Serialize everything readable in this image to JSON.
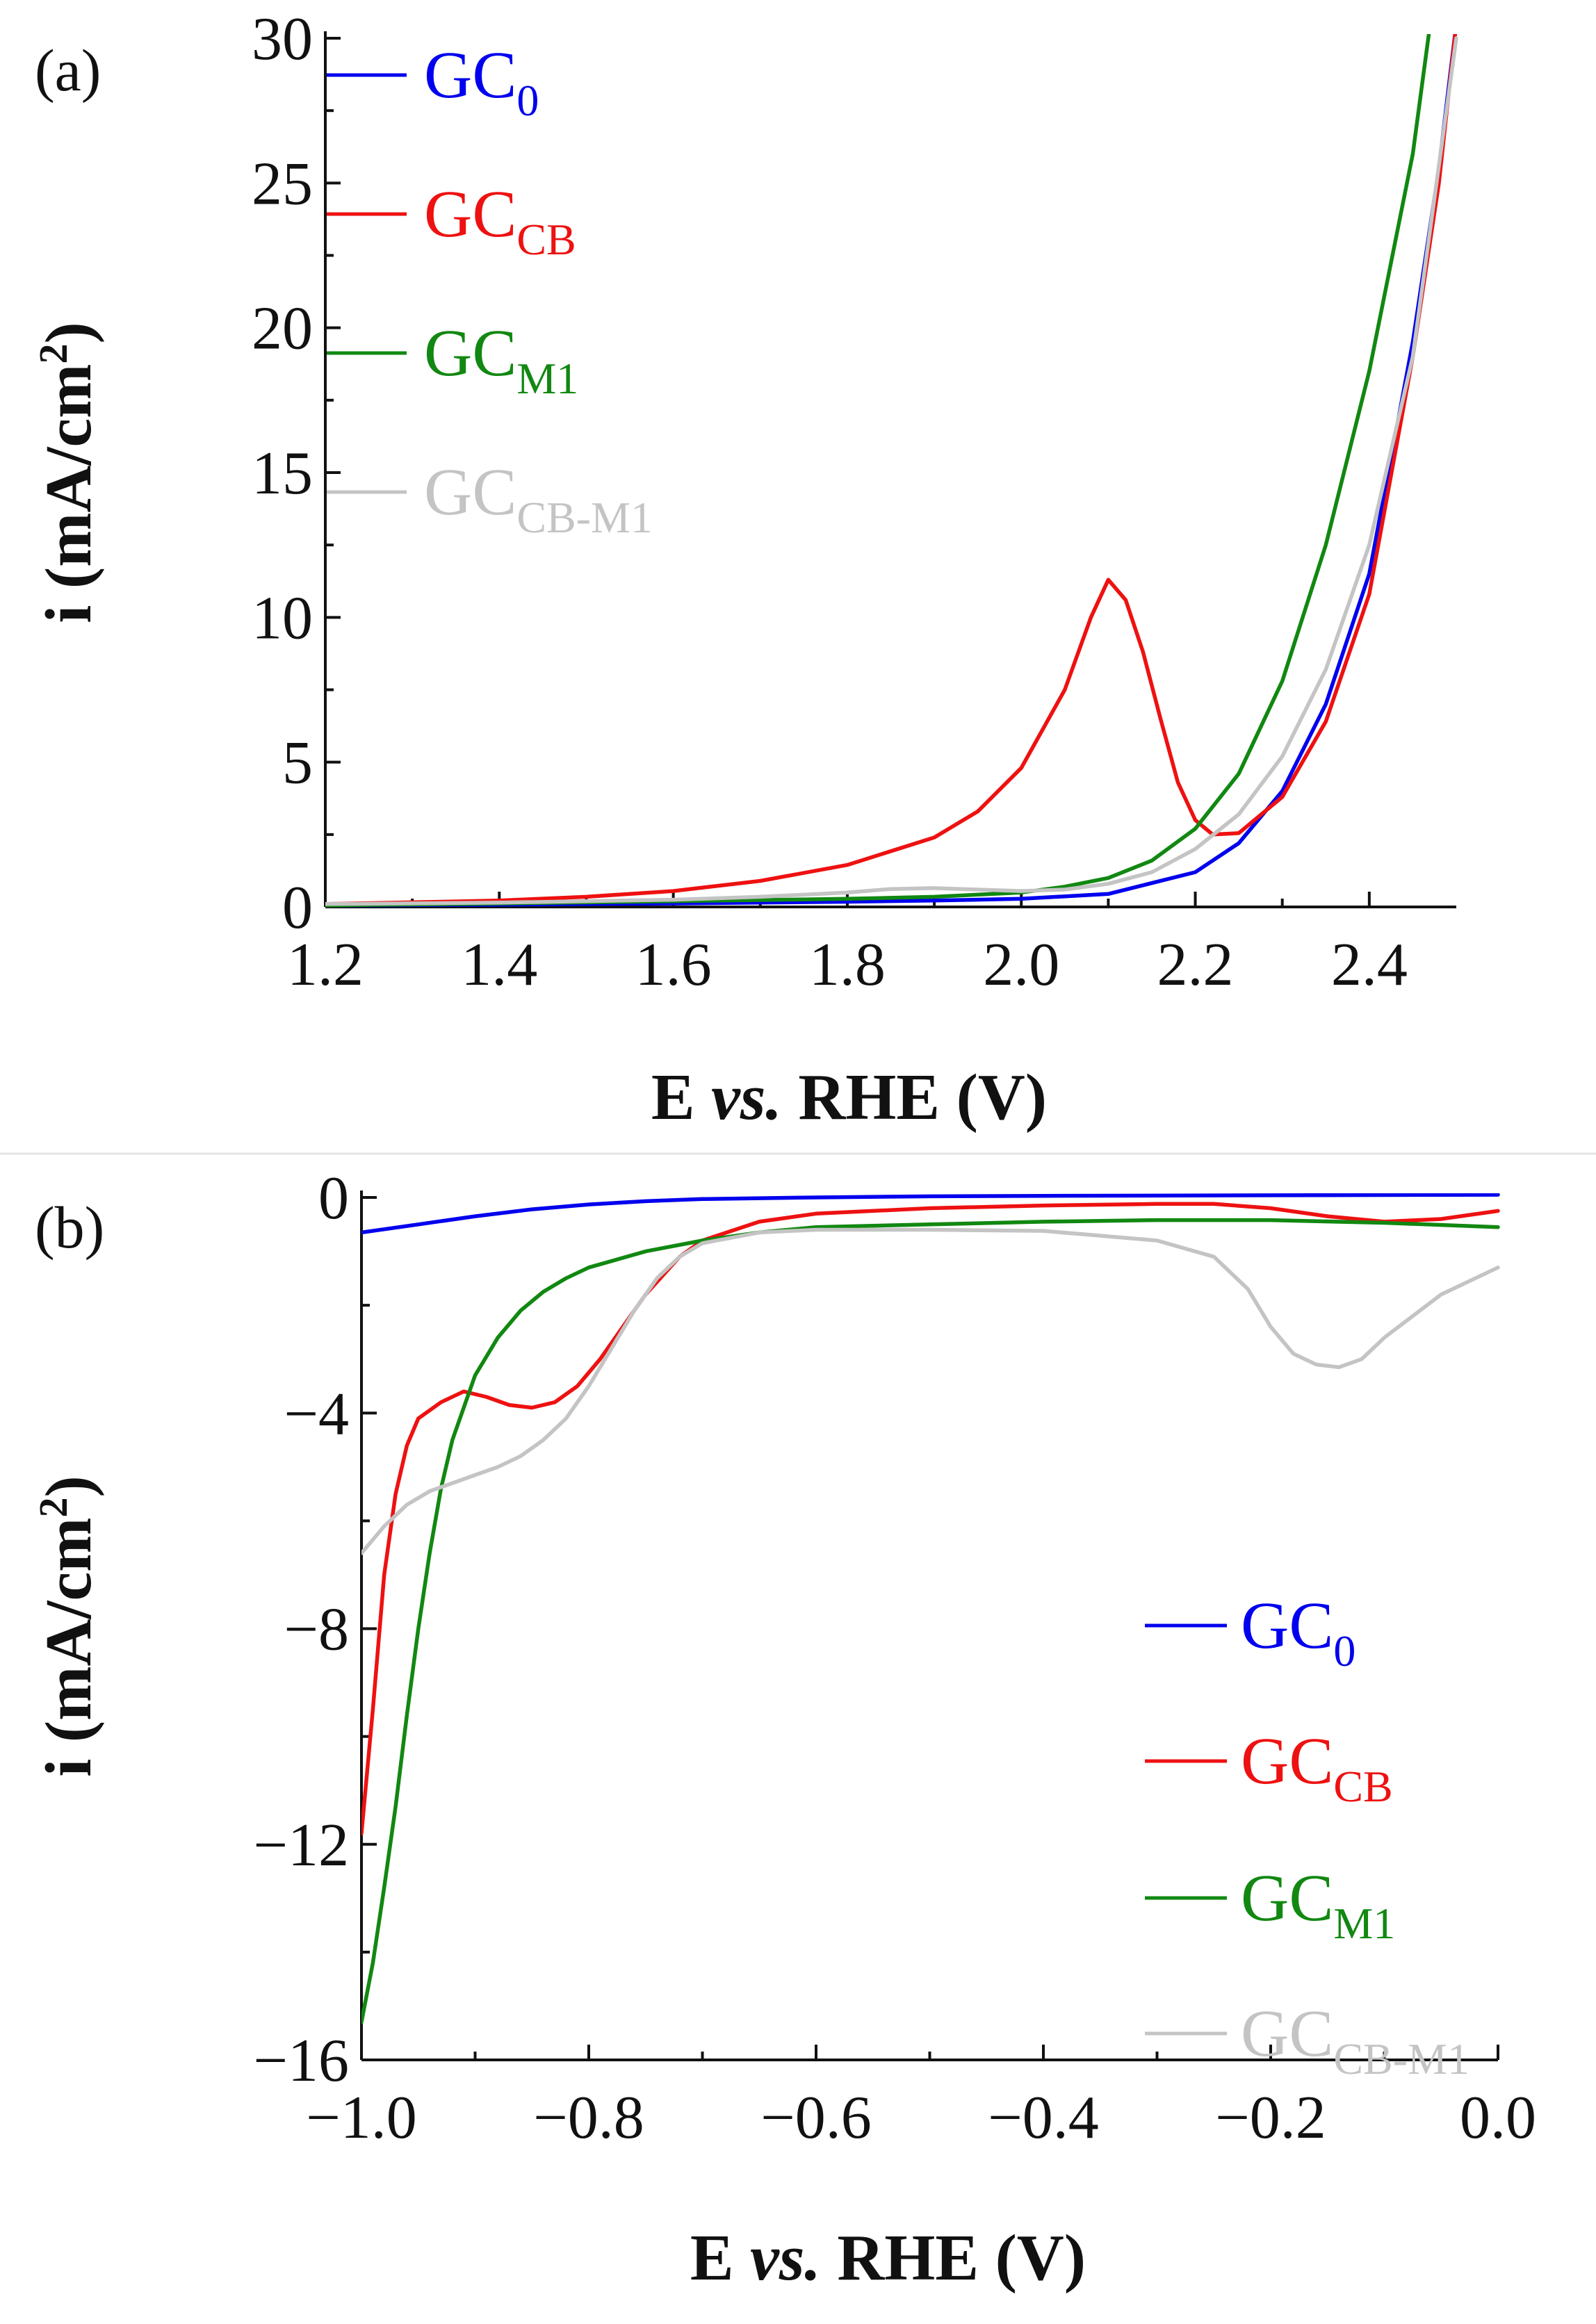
{
  "colors": {
    "GC0": "#0000ee",
    "GCCB": "#ee1111",
    "GCM1": "#118811",
    "GCCBM1": "#c4c4c4"
  },
  "chart_data": [
    {
      "panel": "(a)",
      "type": "line",
      "xlabel_parts": [
        "E ",
        "vs.",
        " RHE (V)"
      ],
      "ylabel": "i (mA/cm",
      "ylabel_sup": "2",
      "ylabel_close": ")",
      "xlim": [
        1.2,
        2.5
      ],
      "ylim": [
        0,
        30
      ],
      "xticks": [
        1.2,
        1.4,
        1.6,
        1.8,
        2.0,
        2.2,
        2.4
      ],
      "xtick_labels": [
        "1.2",
        "1.4",
        "1.6",
        "1.8",
        "2.0",
        "2.2",
        "2.4"
      ],
      "yticks": [
        0,
        5,
        10,
        15,
        20,
        25,
        30
      ],
      "ytick_labels": [
        "0",
        "5",
        "10",
        "15",
        "20",
        "25",
        "30"
      ],
      "legend_position": "top-left",
      "series": [
        {
          "key": "GC0",
          "name": "GC",
          "sub": "0",
          "x": [
            1.2,
            1.4,
            1.6,
            1.8,
            1.9,
            2.0,
            2.1,
            2.2,
            2.25,
            2.3,
            2.35,
            2.4,
            2.45,
            2.48,
            2.5
          ],
          "y": [
            0.05,
            0.08,
            0.12,
            0.18,
            0.22,
            0.28,
            0.45,
            1.2,
            2.2,
            4.0,
            7.0,
            11.5,
            19.5,
            25.5,
            30.5
          ]
        },
        {
          "key": "GCCB",
          "name": "GC",
          "sub": "CB",
          "x": [
            1.2,
            1.4,
            1.5,
            1.6,
            1.7,
            1.8,
            1.9,
            1.95,
            2.0,
            2.05,
            2.08,
            2.1,
            2.12,
            2.14,
            2.16,
            2.18,
            2.2,
            2.22,
            2.25,
            2.3,
            2.35,
            2.4,
            2.45,
            2.48,
            2.5
          ],
          "y": [
            0.1,
            0.22,
            0.35,
            0.55,
            0.9,
            1.45,
            2.4,
            3.3,
            4.8,
            7.5,
            10.0,
            11.3,
            10.6,
            8.8,
            6.5,
            4.3,
            3.0,
            2.5,
            2.55,
            3.8,
            6.4,
            10.8,
            19.0,
            25.0,
            30.5
          ]
        },
        {
          "key": "GCM1",
          "name": "GC",
          "sub": "M1",
          "x": [
            1.2,
            1.4,
            1.6,
            1.8,
            1.9,
            2.0,
            2.05,
            2.1,
            2.15,
            2.2,
            2.25,
            2.3,
            2.35,
            2.4,
            2.45,
            2.47
          ],
          "y": [
            0.05,
            0.12,
            0.2,
            0.28,
            0.35,
            0.5,
            0.7,
            1.0,
            1.6,
            2.7,
            4.6,
            7.8,
            12.5,
            18.5,
            26.0,
            30.5
          ]
        },
        {
          "key": "GCCBM1",
          "name": "GC",
          "sub": "CB-M1",
          "x": [
            1.2,
            1.4,
            1.6,
            1.7,
            1.8,
            1.85,
            1.9,
            1.95,
            2.0,
            2.05,
            2.1,
            2.15,
            2.2,
            2.25,
            2.3,
            2.35,
            2.4,
            2.45,
            2.5
          ],
          "y": [
            0.1,
            0.15,
            0.25,
            0.35,
            0.5,
            0.62,
            0.65,
            0.6,
            0.55,
            0.6,
            0.8,
            1.2,
            2.0,
            3.2,
            5.2,
            8.2,
            12.5,
            19.0,
            30.0
          ]
        }
      ]
    },
    {
      "panel": "(b)",
      "type": "line",
      "xlabel_parts": [
        "E ",
        "vs.",
        " RHE (V)"
      ],
      "ylabel": "i (mA/cm",
      "ylabel_sup": "2",
      "ylabel_close": ")",
      "xlim": [
        -1.0,
        0.0
      ],
      "ylim": [
        -16,
        0
      ],
      "xticks": [
        -1.0,
        -0.8,
        -0.6,
        -0.4,
        -0.2,
        0.0
      ],
      "xtick_labels": [
        "−1.0",
        "−0.8",
        "−0.6",
        "−0.4",
        "−0.2",
        "0.0"
      ],
      "yticks": [
        0,
        -4,
        -8,
        -12,
        -16
      ],
      "ytick_labels": [
        "0",
        "−4",
        "−8",
        "−12",
        "−16"
      ],
      "legend_position": "bottom-right",
      "series": [
        {
          "key": "GC0",
          "name": "GC",
          "sub": "0",
          "x": [
            -1.0,
            -0.95,
            -0.9,
            -0.85,
            -0.8,
            -0.75,
            -0.7,
            -0.6,
            -0.5,
            -0.4,
            -0.2,
            0.0
          ],
          "y": [
            -0.65,
            -0.5,
            -0.35,
            -0.22,
            -0.13,
            -0.07,
            -0.03,
            0.0,
            0.02,
            0.03,
            0.04,
            0.05
          ]
        },
        {
          "key": "GCCB",
          "name": "GC",
          "sub": "CB",
          "x": [
            -1.0,
            -0.99,
            -0.98,
            -0.97,
            -0.96,
            -0.95,
            -0.93,
            -0.91,
            -0.89,
            -0.87,
            -0.85,
            -0.83,
            -0.81,
            -0.79,
            -0.77,
            -0.75,
            -0.72,
            -0.7,
            -0.65,
            -0.6,
            -0.5,
            -0.4,
            -0.3,
            -0.25,
            -0.2,
            -0.15,
            -0.1,
            -0.05,
            0.0
          ],
          "y": [
            -11.8,
            -9.5,
            -7.0,
            -5.5,
            -4.6,
            -4.1,
            -3.8,
            -3.6,
            -3.7,
            -3.85,
            -3.9,
            -3.8,
            -3.5,
            -3.0,
            -2.4,
            -1.8,
            -1.1,
            -0.8,
            -0.45,
            -0.3,
            -0.2,
            -0.15,
            -0.12,
            -0.12,
            -0.2,
            -0.35,
            -0.45,
            -0.4,
            -0.25
          ]
        },
        {
          "key": "GCM1",
          "name": "GC",
          "sub": "M1",
          "x": [
            -1.0,
            -0.99,
            -0.98,
            -0.97,
            -0.96,
            -0.95,
            -0.94,
            -0.93,
            -0.92,
            -0.9,
            -0.88,
            -0.86,
            -0.84,
            -0.82,
            -0.8,
            -0.75,
            -0.7,
            -0.65,
            -0.6,
            -0.5,
            -0.4,
            -0.3,
            -0.2,
            -0.1,
            0.0
          ],
          "y": [
            -15.3,
            -14.2,
            -12.8,
            -11.3,
            -9.6,
            -8.0,
            -6.6,
            -5.4,
            -4.5,
            -3.3,
            -2.6,
            -2.1,
            -1.75,
            -1.5,
            -1.3,
            -1.0,
            -0.8,
            -0.65,
            -0.55,
            -0.5,
            -0.45,
            -0.42,
            -0.42,
            -0.47,
            -0.55
          ]
        },
        {
          "key": "GCCBM1",
          "name": "GC",
          "sub": "CB-M1",
          "x": [
            -1.0,
            -0.98,
            -0.96,
            -0.94,
            -0.92,
            -0.9,
            -0.88,
            -0.86,
            -0.84,
            -0.82,
            -0.8,
            -0.78,
            -0.76,
            -0.74,
            -0.72,
            -0.7,
            -0.65,
            -0.6,
            -0.5,
            -0.4,
            -0.3,
            -0.25,
            -0.22,
            -0.2,
            -0.18,
            -0.16,
            -0.14,
            -0.12,
            -0.1,
            -0.05,
            0.0
          ],
          "y": [
            -6.6,
            -6.1,
            -5.7,
            -5.45,
            -5.3,
            -5.15,
            -5.0,
            -4.8,
            -4.5,
            -4.1,
            -3.5,
            -2.8,
            -2.1,
            -1.5,
            -1.1,
            -0.85,
            -0.65,
            -0.6,
            -0.6,
            -0.62,
            -0.8,
            -1.1,
            -1.7,
            -2.4,
            -2.9,
            -3.1,
            -3.15,
            -3.0,
            -2.6,
            -1.8,
            -1.3
          ]
        }
      ]
    }
  ]
}
